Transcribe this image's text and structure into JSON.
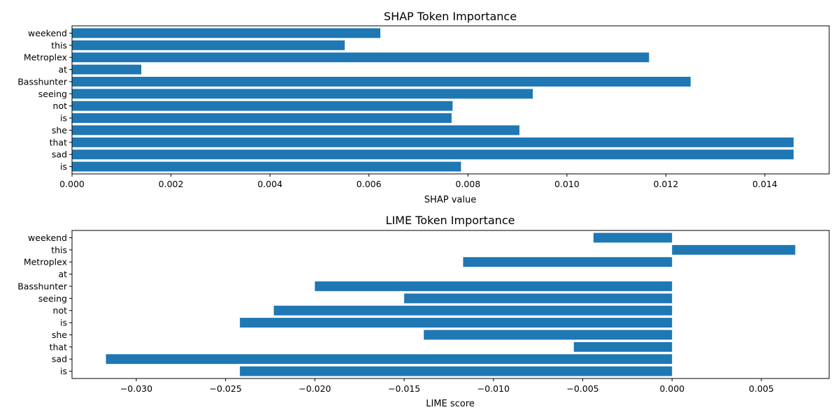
{
  "chart_data": [
    {
      "type": "bar",
      "orientation": "horizontal",
      "title": "SHAP Token Importance",
      "xlabel": "SHAP value",
      "ylabel": "",
      "xlim": [
        0,
        0.0153
      ],
      "x_ticks": [
        0,
        0.002,
        0.004,
        0.006,
        0.008,
        0.01,
        0.012,
        0.014
      ],
      "x_tick_labels": [
        "0.000",
        "0.002",
        "0.004",
        "0.006",
        "0.008",
        "0.010",
        "0.012",
        "0.014"
      ],
      "categories": [
        "is",
        "sad",
        "that",
        "she",
        "is",
        "not",
        "seeing",
        "Basshunter",
        "at",
        "Metroplex",
        "this",
        "weekend"
      ],
      "values": [
        0.00786,
        0.01458,
        0.01458,
        0.00904,
        0.00767,
        0.00769,
        0.00931,
        0.0125,
        0.0014,
        0.01166,
        0.00551,
        0.00623
      ],
      "color": "#1f77b4",
      "grid": false
    },
    {
      "type": "bar",
      "orientation": "horizontal",
      "title": "LIME Token Importance",
      "xlabel": "LIME score",
      "ylabel": "",
      "xlim": [
        -0.0336,
        0.0088
      ],
      "x_ticks": [
        -0.03,
        -0.025,
        -0.02,
        -0.015,
        -0.01,
        -0.005,
        0.0,
        0.005
      ],
      "x_tick_labels": [
        "−0.030",
        "−0.025",
        "−0.020",
        "−0.015",
        "−0.010",
        "−0.005",
        "0.000",
        "0.005"
      ],
      "categories": [
        "is",
        "sad",
        "that",
        "she",
        "is",
        "not",
        "seeing",
        "Basshunter",
        "at",
        "Metroplex",
        "this",
        "weekend"
      ],
      "values": [
        -0.0242,
        -0.0317,
        -0.0055,
        -0.0139,
        -0.0242,
        -0.0223,
        -0.015,
        -0.02,
        0.0,
        -0.0117,
        0.0069,
        -0.0044
      ],
      "color": "#1f77b4",
      "grid": false
    }
  ]
}
